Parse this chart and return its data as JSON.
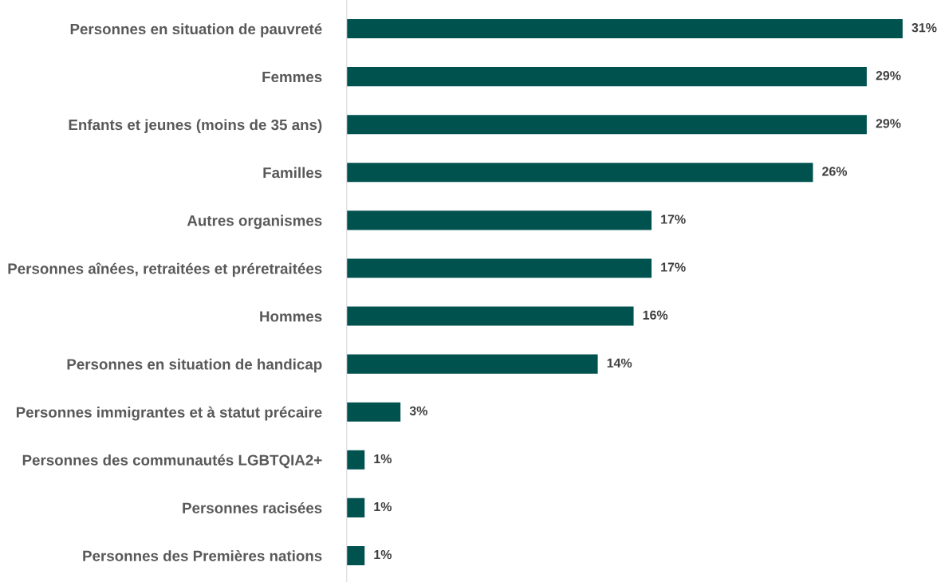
{
  "chart_data": {
    "type": "bar",
    "orientation": "horizontal",
    "categories": [
      "Personnes en situation de pauvreté",
      "Femmes",
      "Enfants et jeunes (moins de 35 ans)",
      "Familles",
      "Autres organismes",
      "Personnes aînées, retraitées et préretraitées",
      "Hommes",
      "Personnes en situation de handicap",
      "Personnes immigrantes et à statut précaire",
      "Personnes des communautés LGBTQIA2+",
      "Personnes racisées",
      "Personnes des Premières nations"
    ],
    "values": [
      31,
      29,
      29,
      26,
      17,
      17,
      16,
      14,
      3,
      1,
      1,
      1
    ],
    "value_labels": [
      "31%",
      "29%",
      "29%",
      "26%",
      "17%",
      "17%",
      "16%",
      "14%",
      "3%",
      "1%",
      "1%",
      "1%"
    ],
    "color": "#00524f",
    "grid": false,
    "legend": false,
    "tick_labels": "y"
  }
}
